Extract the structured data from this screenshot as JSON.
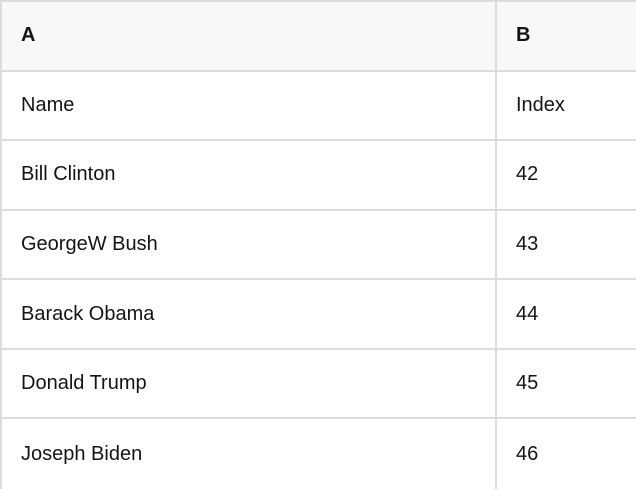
{
  "table": {
    "header": [
      "A",
      "B"
    ],
    "rows": [
      [
        "Name",
        "Index"
      ],
      [
        "Bill Clinton",
        "42"
      ],
      [
        "GeorgeW Bush",
        "43"
      ],
      [
        "Barack Obama",
        "44"
      ],
      [
        "Donald Trump",
        "45"
      ],
      [
        "Joseph Biden",
        "46"
      ]
    ]
  },
  "colors": {
    "border": "#dcdcdc",
    "header_background": "#f8f8f8",
    "cell_background": "#ffffff",
    "text": "#141414"
  }
}
